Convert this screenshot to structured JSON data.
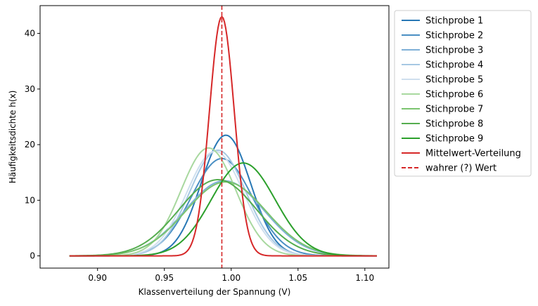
{
  "chart_data": {
    "type": "line",
    "title": "",
    "xlabel": "Klassenverteilung der Spannung (V)",
    "ylabel": "Häufigkeitsdichte h(x)",
    "xlim": [
      0.857,
      1.118
    ],
    "ylim": [
      -2.2,
      45
    ],
    "x_range": [
      0.879,
      1.109
    ],
    "xticks": [
      0.9,
      0.95,
      1.0,
      1.05,
      1.1
    ],
    "xtick_labels": [
      "0.90",
      "0.95",
      "1.00",
      "1.05",
      "1.10"
    ],
    "yticks": [
      0,
      10,
      20,
      30,
      40
    ],
    "ytick_labels": [
      "0",
      "10",
      "20",
      "30",
      "40"
    ],
    "grid": false,
    "legend_position": "outside-right-top",
    "series": [
      {
        "name": "Stichprobe 1",
        "color": "#2878b5",
        "mean": 0.996,
        "peak": 21.7
      },
      {
        "name": "Stichprobe 2",
        "color": "#4a8fc3",
        "mean": 0.993,
        "peak": 17.5
      },
      {
        "name": "Stichprobe 3",
        "color": "#7fb0d7",
        "mean": 0.995,
        "peak": 13.5
      },
      {
        "name": "Stichprobe 4",
        "color": "#a6c8e3",
        "mean": 0.99,
        "peak": 19.0
      },
      {
        "name": "Stichprobe 5",
        "color": "#cfdfee",
        "mean": 0.988,
        "peak": 18.8
      },
      {
        "name": "Stichprobe 6",
        "color": "#a8d89f",
        "mean": 0.983,
        "peak": 19.4
      },
      {
        "name": "Stichprobe 7",
        "color": "#7bc46f",
        "mean": 0.996,
        "peak": 13.3
      },
      {
        "name": "Stichprobe 8",
        "color": "#55ad4f",
        "mean": 0.99,
        "peak": 13.7
      },
      {
        "name": "Stichprobe 9",
        "color": "#2ca02c",
        "mean": 1.009,
        "peak": 16.7
      },
      {
        "name": "Mittelwert-Verteilung",
        "color": "#d62728",
        "mean": 0.993,
        "peak": 43.0
      }
    ],
    "reference_line": {
      "name": "wahrer (?) Wert",
      "x": 0.993,
      "color": "#d62728",
      "style": "dashed"
    }
  }
}
